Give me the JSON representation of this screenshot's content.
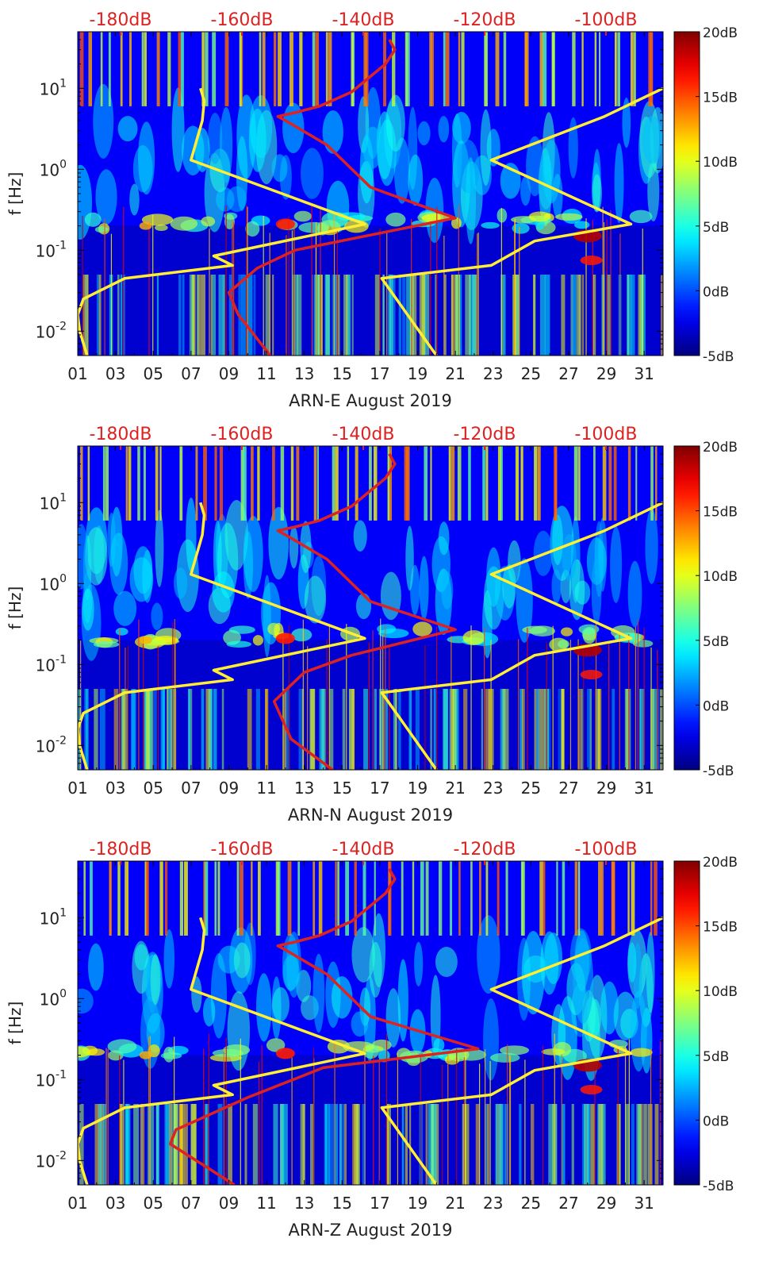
{
  "chart_data": [
    {
      "type": "heatmap",
      "xlabel": "ARN-E August 2019",
      "ylabel": "f [Hz]",
      "x_ticks": [
        "01",
        "03",
        "05",
        "07",
        "09",
        "11",
        "13",
        "15",
        "17",
        "19",
        "21",
        "23",
        "25",
        "27",
        "29",
        "31"
      ],
      "x_range": [
        1,
        32
      ],
      "y_scale": "log",
      "y_range": [
        0.005,
        50
      ],
      "y_ticks": [
        {
          "base": "10",
          "exp": "-2"
        },
        {
          "base": "10",
          "exp": "-1"
        },
        {
          "base": "10",
          "exp": "0"
        },
        {
          "base": "10",
          "exp": "1"
        }
      ],
      "top_axis_ticks": [
        "-180dB",
        "-160dB",
        "-140dB",
        "-120dB",
        "-100dB"
      ],
      "colorbar": {
        "ticks": [
          "20dB",
          "15dB",
          "10dB",
          "5dB",
          "0dB",
          "-5dB"
        ],
        "range": [
          -5,
          20
        ],
        "colormap": "jet"
      },
      "lines": [
        {
          "color": "#ffee33",
          "points": [
            [
              1.5,
              0.005
            ],
            [
              1.1,
              0.01
            ],
            [
              1.0,
              0.016
            ],
            [
              1.3,
              0.025
            ],
            [
              3.5,
              0.045
            ],
            [
              9.2,
              0.065
            ],
            [
              8.2,
              0.085
            ],
            [
              16.2,
              0.21
            ],
            [
              7.0,
              1.3
            ],
            [
              7.6,
              4
            ],
            [
              7.7,
              7
            ],
            [
              7.5,
              10
            ]
          ]
        },
        {
          "color": "#ffee33",
          "points": [
            [
              20.0,
              0.005
            ],
            [
              17.1,
              0.045
            ],
            [
              22.9,
              0.065
            ],
            [
              25.2,
              0.13
            ],
            [
              30.3,
              0.21
            ],
            [
              22.9,
              1.3
            ],
            [
              28.9,
              4.5
            ],
            [
              32.0,
              10
            ]
          ]
        },
        {
          "color": "#dd2222",
          "points": [
            [
              11.2,
              0.005
            ],
            [
              9.5,
              0.016
            ],
            [
              9.0,
              0.03
            ],
            [
              10.5,
              0.06
            ],
            [
              12.5,
              0.1
            ],
            [
              21.0,
              0.25
            ],
            [
              16.5,
              0.6
            ],
            [
              14.2,
              2
            ],
            [
              12.0,
              4
            ],
            [
              11.6,
              4.5
            ],
            [
              12.5,
              5
            ],
            [
              13.8,
              6
            ],
            [
              15.5,
              9
            ],
            [
              16.5,
              14
            ],
            [
              17.3,
              20
            ],
            [
              17.8,
              30
            ],
            [
              17.5,
              40
            ]
          ]
        }
      ]
    },
    {
      "type": "heatmap",
      "xlabel": "ARN-N August 2019",
      "ylabel": "f [Hz]",
      "x_ticks": [
        "01",
        "03",
        "05",
        "07",
        "09",
        "11",
        "13",
        "15",
        "17",
        "19",
        "21",
        "23",
        "25",
        "27",
        "29",
        "31"
      ],
      "x_range": [
        1,
        32
      ],
      "y_scale": "log",
      "y_range": [
        0.005,
        50
      ],
      "y_ticks": [
        {
          "base": "10",
          "exp": "-2"
        },
        {
          "base": "10",
          "exp": "-1"
        },
        {
          "base": "10",
          "exp": "0"
        },
        {
          "base": "10",
          "exp": "1"
        }
      ],
      "top_axis_ticks": [
        "-180dB",
        "-160dB",
        "-140dB",
        "-120dB",
        "-100dB"
      ],
      "colorbar": {
        "ticks": [
          "20dB",
          "15dB",
          "10dB",
          "5dB",
          "0dB",
          "-5dB"
        ],
        "range": [
          -5,
          20
        ],
        "colormap": "jet"
      },
      "lines": [
        {
          "color": "#ffee33",
          "points": [
            [
              1.5,
              0.005
            ],
            [
              1.1,
              0.01
            ],
            [
              1.0,
              0.016
            ],
            [
              1.3,
              0.025
            ],
            [
              3.5,
              0.045
            ],
            [
              9.2,
              0.065
            ],
            [
              8.2,
              0.085
            ],
            [
              16.2,
              0.21
            ],
            [
              7.0,
              1.3
            ],
            [
              7.6,
              4
            ],
            [
              7.7,
              7
            ],
            [
              7.5,
              10
            ]
          ]
        },
        {
          "color": "#ffee33",
          "points": [
            [
              20.0,
              0.005
            ],
            [
              17.1,
              0.045
            ],
            [
              22.9,
              0.065
            ],
            [
              25.2,
              0.13
            ],
            [
              30.3,
              0.21
            ],
            [
              22.9,
              1.3
            ],
            [
              28.9,
              4.5
            ],
            [
              32.0,
              10
            ]
          ]
        },
        {
          "color": "#dd2222",
          "points": [
            [
              14.5,
              0.005
            ],
            [
              12.3,
              0.012
            ],
            [
              11.4,
              0.035
            ],
            [
              13.0,
              0.08
            ],
            [
              15.5,
              0.13
            ],
            [
              21.0,
              0.27
            ],
            [
              16.5,
              0.6
            ],
            [
              14.2,
              2
            ],
            [
              12.0,
              4
            ],
            [
              11.6,
              4.5
            ],
            [
              12.5,
              5
            ],
            [
              13.8,
              6
            ],
            [
              15.5,
              9
            ],
            [
              16.5,
              14
            ],
            [
              17.3,
              20
            ],
            [
              17.8,
              30
            ],
            [
              17.5,
              40
            ]
          ]
        }
      ]
    },
    {
      "type": "heatmap",
      "xlabel": "ARN-Z August 2019",
      "ylabel": "f [Hz]",
      "x_ticks": [
        "01",
        "03",
        "05",
        "07",
        "09",
        "11",
        "13",
        "15",
        "17",
        "19",
        "21",
        "23",
        "25",
        "27",
        "29",
        "31"
      ],
      "x_range": [
        1,
        32
      ],
      "y_scale": "log",
      "y_range": [
        0.005,
        50
      ],
      "y_ticks": [
        {
          "base": "10",
          "exp": "-2"
        },
        {
          "base": "10",
          "exp": "-1"
        },
        {
          "base": "10",
          "exp": "0"
        },
        {
          "base": "10",
          "exp": "1"
        }
      ],
      "top_axis_ticks": [
        "-180dB",
        "-160dB",
        "-140dB",
        "-120dB",
        "-100dB"
      ],
      "colorbar": {
        "ticks": [
          "20dB",
          "15dB",
          "10dB",
          "5dB",
          "0dB",
          "-5dB"
        ],
        "range": [
          -5,
          20
        ],
        "colormap": "jet"
      },
      "lines": [
        {
          "color": "#ffee33",
          "points": [
            [
              1.5,
              0.005
            ],
            [
              1.1,
              0.01
            ],
            [
              1.0,
              0.016
            ],
            [
              1.3,
              0.025
            ],
            [
              3.5,
              0.045
            ],
            [
              9.2,
              0.065
            ],
            [
              8.2,
              0.085
            ],
            [
              16.2,
              0.21
            ],
            [
              7.0,
              1.3
            ],
            [
              7.6,
              4
            ],
            [
              7.7,
              7
            ],
            [
              7.5,
              10
            ]
          ]
        },
        {
          "color": "#ffee33",
          "points": [
            [
              20.0,
              0.005
            ],
            [
              17.1,
              0.045
            ],
            [
              22.9,
              0.065
            ],
            [
              25.2,
              0.13
            ],
            [
              30.3,
              0.21
            ],
            [
              22.9,
              1.3
            ],
            [
              28.9,
              4.5
            ],
            [
              32.0,
              10
            ]
          ]
        },
        {
          "color": "#dd2222",
          "points": [
            [
              9.3,
              0.005
            ],
            [
              7.0,
              0.011
            ],
            [
              5.9,
              0.016
            ],
            [
              6.2,
              0.024
            ],
            [
              10.0,
              0.06
            ],
            [
              14.0,
              0.14
            ],
            [
              22.2,
              0.24
            ],
            [
              16.5,
              0.6
            ],
            [
              14.2,
              2
            ],
            [
              12.0,
              4
            ],
            [
              11.6,
              4.5
            ],
            [
              12.5,
              5
            ],
            [
              13.8,
              6
            ],
            [
              15.5,
              9
            ],
            [
              16.5,
              14
            ],
            [
              17.3,
              20
            ],
            [
              17.8,
              30
            ],
            [
              17.5,
              40
            ]
          ]
        }
      ]
    }
  ]
}
